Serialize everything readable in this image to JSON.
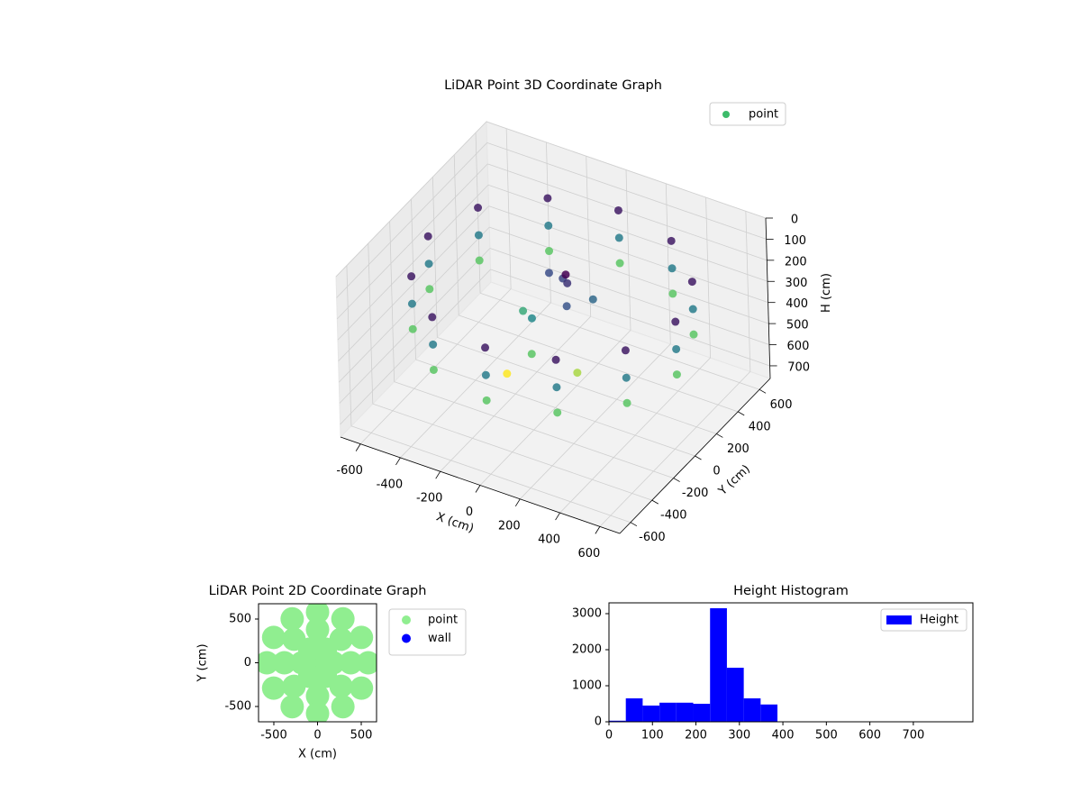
{
  "chart_data": [
    {
      "type": "scatter3d",
      "title": "LiDAR Point 3D Coordinate Graph",
      "xlabel": "X (cm)",
      "ylabel": "Y (cm)",
      "zlabel": "H (cm)",
      "xlim": [
        -700,
        700
      ],
      "ylim": [
        -700,
        700
      ],
      "zlim": [
        760,
        0
      ],
      "xticks": [
        -600,
        -400,
        -200,
        0,
        200,
        400,
        600
      ],
      "yticks": [
        -600,
        -400,
        -200,
        0,
        200,
        400,
        600
      ],
      "zticks": [
        0,
        100,
        200,
        300,
        400,
        500,
        600,
        700
      ],
      "colormap": "viridis",
      "legend": "upper right",
      "grid": true,
      "series": [
        {
          "name": "point",
          "color": "#3dbb6a",
          "x": [
            620,
            537,
            310,
            0,
            -310,
            -537,
            -620,
            -537,
            -310,
            0,
            310,
            537,
            620,
            537,
            310,
            0,
            -310,
            -537,
            -620,
            -537,
            -310,
            0,
            310,
            537,
            620,
            537,
            310,
            0,
            -310,
            -537,
            -620,
            -537,
            -310,
            0,
            310,
            537,
            0,
            50,
            -80,
            100,
            -50,
            150,
            -150,
            0,
            200,
            -100,
            60
          ],
          "y": [
            0,
            310,
            537,
            620,
            537,
            310,
            0,
            -310,
            -537,
            -620,
            -537,
            -310,
            0,
            310,
            537,
            620,
            537,
            310,
            0,
            -310,
            -537,
            -620,
            -537,
            -310,
            0,
            310,
            537,
            620,
            537,
            310,
            0,
            -310,
            -537,
            -620,
            -537,
            -310,
            100,
            50,
            120,
            -50,
            -100,
            100,
            0,
            -200,
            -150,
            -250,
            20
          ],
          "h": [
            150,
            150,
            150,
            150,
            150,
            150,
            150,
            150,
            150,
            150,
            150,
            150,
            280,
            280,
            280,
            280,
            280,
            280,
            280,
            280,
            280,
            280,
            280,
            280,
            400,
            400,
            400,
            400,
            400,
            400,
            400,
            400,
            400,
            400,
            400,
            400,
            200,
            180,
            210,
            220,
            300,
            250,
            350,
            400,
            450,
            500,
            120
          ]
        }
      ]
    },
    {
      "type": "scatter",
      "title": "LiDAR Point 2D Coordinate Graph",
      "xlabel": "X (cm)",
      "ylabel": "Y (cm)",
      "xlim": [
        -675,
        675
      ],
      "ylim": [
        -675,
        675
      ],
      "xticks": [
        -500,
        0,
        500
      ],
      "yticks": [
        -500,
        0,
        500
      ],
      "legend": "outside right",
      "series": [
        {
          "name": "point",
          "color": "#90ee90",
          "x": [
            0,
            180,
            90,
            -90,
            -180,
            -90,
            90,
            380,
            269,
            0,
            -269,
            -380,
            -269,
            0,
            269,
            580,
            502,
            290,
            0,
            -290,
            -502,
            -580,
            -502,
            -290,
            0,
            290,
            502
          ],
          "y": [
            0,
            0,
            156,
            156,
            0,
            -156,
            -156,
            0,
            269,
            380,
            269,
            0,
            -269,
            -380,
            -269,
            0,
            290,
            502,
            580,
            502,
            290,
            0,
            -290,
            -502,
            -580,
            -502,
            -290
          ]
        },
        {
          "name": "wall",
          "color": "#0000ff",
          "x": [],
          "y": []
        }
      ]
    },
    {
      "type": "histogram",
      "title": "Height Histogram",
      "name": "Height",
      "color": "#0000ff",
      "bins": [
        0,
        38.75,
        77.5,
        116.25,
        155,
        193.75,
        232.5,
        271.25,
        310,
        348.75,
        387.5,
        426.25,
        465,
        503.75,
        542.5,
        581.25,
        620,
        658.75,
        697.5,
        736.25,
        775
      ],
      "counts": [
        30,
        650,
        450,
        530,
        530,
        500,
        3150,
        1500,
        650,
        480,
        0,
        0,
        0,
        0,
        0,
        0,
        0,
        0,
        0,
        0
      ],
      "xlim": [
        0,
        837
      ],
      "ylim": [
        0,
        3300
      ],
      "xticks": [
        0,
        100,
        200,
        300,
        400,
        500,
        600,
        700
      ],
      "yticks": [
        0,
        1000,
        2000,
        3000
      ],
      "legend": "upper right"
    }
  ]
}
